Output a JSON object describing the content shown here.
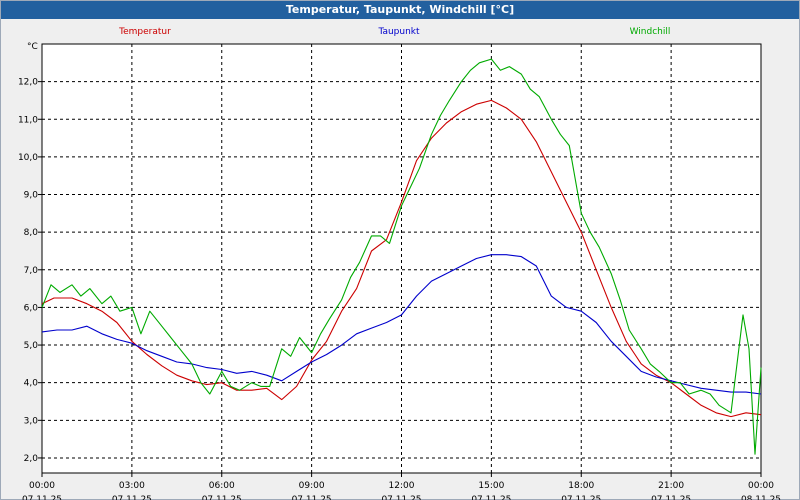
{
  "window": {
    "title": "Temperatur, Taupunkt, Windchill [°C]"
  },
  "colors": {
    "title_bar": "#22609f",
    "background": "#efefef",
    "plot_background": "#ffffff",
    "grid": "#000000",
    "temperatur": "#cc0000",
    "taupunkt": "#0000cc",
    "windchill": "#00aa00"
  },
  "chart_data": {
    "type": "line",
    "title": "Temperatur, Taupunkt, Windchill [°C]",
    "xlabel": "",
    "ylabel": "°C",
    "ylim": [
      1.6,
      13.0
    ],
    "xlim": [
      0,
      24
    ],
    "grid": true,
    "legend_position": "top",
    "yticks": [
      "2,0",
      "3,0",
      "4,0",
      "5,0",
      "6,0",
      "7,0",
      "8,0",
      "9,0",
      "10,0",
      "11,0",
      "12,0"
    ],
    "ytick_values": [
      2,
      3,
      4,
      5,
      6,
      7,
      8,
      9,
      10,
      11,
      12
    ],
    "xticks": [
      {
        "time": "00:00",
        "date": "07.11.25"
      },
      {
        "time": "03:00",
        "date": "07.11.25"
      },
      {
        "time": "06:00",
        "date": "07.11.25"
      },
      {
        "time": "09:00",
        "date": "07.11.25"
      },
      {
        "time": "12:00",
        "date": "07.11.25"
      },
      {
        "time": "15:00",
        "date": "07.11.25"
      },
      {
        "time": "18:00",
        "date": "07.11.25"
      },
      {
        "time": "21:00",
        "date": "07.11.25"
      },
      {
        "time": "00:00",
        "date": "08.11.25"
      }
    ],
    "xtick_values": [
      0,
      3,
      6,
      9,
      12,
      15,
      18,
      21,
      24
    ],
    "series": [
      {
        "name": "Temperatur",
        "color": "#cc0000",
        "x": [
          0,
          0.4,
          1,
          1.5,
          2,
          2.5,
          3,
          3.5,
          4,
          4.5,
          5,
          5.5,
          6,
          6.5,
          7,
          7.5,
          8,
          8.5,
          9,
          9.5,
          10,
          10.5,
          11,
          11.5,
          12,
          12.5,
          13,
          13.5,
          14,
          14.5,
          15,
          15.5,
          16,
          16.5,
          17,
          17.5,
          18,
          18.5,
          19,
          19.5,
          20,
          20.5,
          21,
          21.5,
          22,
          22.5,
          23,
          23.5,
          24
        ],
        "values": [
          6.1,
          6.25,
          6.25,
          6.1,
          5.9,
          5.6,
          5.1,
          4.75,
          4.45,
          4.2,
          4.05,
          3.95,
          4.0,
          3.8,
          3.8,
          3.85,
          3.55,
          3.9,
          4.6,
          5.1,
          5.9,
          6.5,
          7.5,
          7.8,
          8.8,
          9.9,
          10.5,
          10.9,
          11.2,
          11.4,
          11.5,
          11.3,
          11.0,
          10.4,
          9.6,
          8.8,
          8.0,
          7.0,
          6.0,
          5.1,
          4.5,
          4.2,
          4.0,
          3.7,
          3.4,
          3.2,
          3.1,
          3.2,
          3.15
        ]
      },
      {
        "name": "Taupunkt",
        "color": "#0000cc",
        "x": [
          0,
          0.5,
          1,
          1.5,
          2,
          2.5,
          3,
          3.5,
          4,
          4.5,
          5,
          5.5,
          6,
          6.5,
          7,
          7.5,
          8,
          8.5,
          9,
          9.5,
          10,
          10.5,
          11,
          11.5,
          12,
          12.5,
          13,
          13.5,
          14,
          14.5,
          15,
          15.5,
          16,
          16.5,
          17,
          17.5,
          18,
          18.5,
          19,
          19.5,
          20,
          20.5,
          21,
          21.5,
          22,
          22.5,
          23,
          23.5,
          24
        ],
        "values": [
          5.35,
          5.4,
          5.4,
          5.5,
          5.3,
          5.15,
          5.05,
          4.85,
          4.7,
          4.55,
          4.5,
          4.4,
          4.35,
          4.25,
          4.3,
          4.2,
          4.05,
          4.3,
          4.55,
          4.75,
          5.0,
          5.3,
          5.45,
          5.6,
          5.8,
          6.3,
          6.7,
          6.9,
          7.1,
          7.3,
          7.4,
          7.4,
          7.35,
          7.1,
          6.3,
          6.0,
          5.9,
          5.6,
          5.1,
          4.7,
          4.3,
          4.15,
          4.05,
          3.95,
          3.85,
          3.8,
          3.75,
          3.75,
          3.7
        ]
      },
      {
        "name": "Windchill",
        "color": "#00aa00",
        "x": [
          0,
          0.3,
          0.6,
          1,
          1.3,
          1.6,
          2,
          2.3,
          2.6,
          3,
          3.3,
          3.6,
          4,
          4.3,
          4.6,
          5,
          5.3,
          5.6,
          6,
          6.3,
          6.6,
          7,
          7.3,
          7.6,
          8,
          8.3,
          8.6,
          9,
          9.3,
          9.6,
          10,
          10.3,
          10.6,
          11,
          11.3,
          11.6,
          12,
          12.3,
          12.6,
          13,
          13.3,
          13.6,
          14,
          14.3,
          14.6,
          15,
          15.3,
          15.6,
          16,
          16.3,
          16.6,
          17,
          17.3,
          17.6,
          18,
          18.3,
          18.6,
          19,
          19.3,
          19.6,
          20,
          20.3,
          20.6,
          21,
          21.3,
          21.6,
          22,
          22.3,
          22.6,
          23,
          23.2,
          23.4,
          23.6,
          23.8,
          24
        ],
        "values": [
          6.0,
          6.6,
          6.4,
          6.6,
          6.3,
          6.5,
          6.1,
          6.3,
          5.9,
          6.0,
          5.3,
          5.9,
          5.5,
          5.2,
          4.9,
          4.5,
          4.0,
          3.7,
          4.3,
          3.9,
          3.8,
          4.0,
          3.9,
          3.9,
          4.9,
          4.7,
          5.2,
          4.8,
          5.3,
          5.7,
          6.2,
          6.8,
          7.2,
          7.9,
          7.9,
          7.7,
          8.7,
          9.2,
          9.7,
          10.6,
          11.1,
          11.5,
          12.0,
          12.3,
          12.5,
          12.6,
          12.3,
          12.4,
          12.2,
          11.8,
          11.6,
          11.0,
          10.6,
          10.3,
          8.5,
          8.0,
          7.6,
          6.9,
          6.2,
          5.4,
          4.9,
          4.5,
          4.3,
          4.0,
          4.0,
          3.7,
          3.8,
          3.7,
          3.4,
          3.2,
          4.5,
          5.8,
          4.9,
          2.1,
          4.4
        ]
      }
    ]
  }
}
